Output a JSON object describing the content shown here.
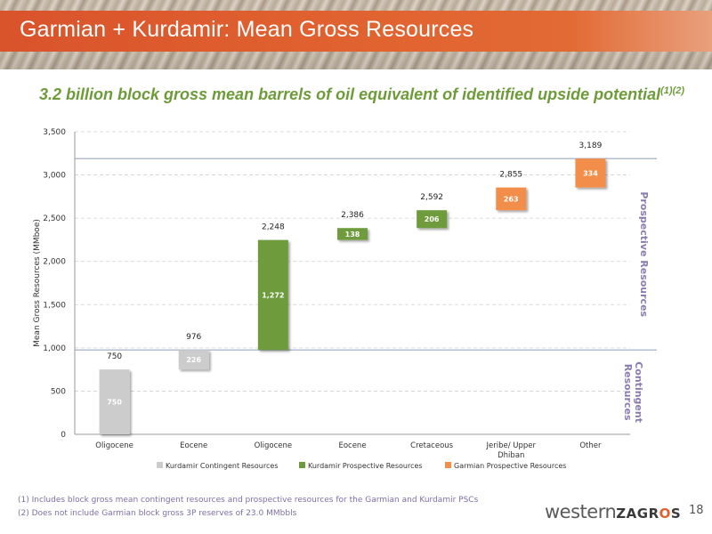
{
  "slide": {
    "title": "Garmian + Kurdamir: Mean Gross Resources",
    "subtitle": "3.2 billion block gross mean barrels of oil equivalent of identified upside potential",
    "subtitle_superscript": "(1)(2)",
    "footnotes": [
      "(1)   Includes block gross mean contingent resources and prospective resources for the Garmian and Kurdamir PSCs",
      "(2)   Does not include Garmian block gross 3P reserves of 23.0 MMbbls"
    ],
    "logo_text_lower": "western",
    "logo_text_upper_a": "ZAGR",
    "logo_text_upper_o": "O",
    "logo_text_upper_b": "S",
    "page_number": "18"
  },
  "chart_data": {
    "type": "bar",
    "subtype": "waterfall",
    "ylabel": "Mean Gross Resources (MMboe)",
    "ylim": [
      0,
      3500
    ],
    "yticks": [
      0,
      500,
      1000,
      1500,
      2000,
      2500,
      3000,
      3500
    ],
    "ytick_labels": [
      "0",
      "500",
      "1,000",
      "1,500",
      "2,000",
      "2,500",
      "3,000",
      "3,500"
    ],
    "grid": true,
    "legend_placement": "bottom",
    "categories": [
      "Oligocene",
      "Eocene",
      "Oligocene",
      "Eocene",
      "Cretaceous",
      "Jeribe/ Upper Dhiban",
      "Other"
    ],
    "bars": [
      {
        "base": 0,
        "value": 750,
        "series": 0,
        "total_label": "750",
        "value_label": "750"
      },
      {
        "base": 750,
        "value": 226,
        "series": 0,
        "total_label": "976",
        "value_label": "226"
      },
      {
        "base": 976,
        "value": 1272,
        "series": 1,
        "total_label": "2,248",
        "value_label": "1,272"
      },
      {
        "base": 2248,
        "value": 138,
        "series": 1,
        "total_label": "2,386",
        "value_label": "138"
      },
      {
        "base": 2386,
        "value": 206,
        "series": 1,
        "total_label": "2,592",
        "value_label": "206"
      },
      {
        "base": 2592,
        "value": 263,
        "series": 2,
        "total_label": "2,855",
        "value_label": "263"
      },
      {
        "base": 2855,
        "value": 334,
        "series": 2,
        "total_label": "3,189",
        "value_label": "334"
      }
    ],
    "series": [
      {
        "name": "Kurdamir Contingent Resources",
        "color": "#cccccc"
      },
      {
        "name": "Kurdamir Prospective Resources",
        "color": "#6e9b3a"
      },
      {
        "name": "Garmian Prospective Resources",
        "color": "#f28e4a"
      }
    ],
    "reference_lines": [
      976,
      3189
    ],
    "region_labels": [
      {
        "text": "Prospective Resources",
        "from": 976,
        "to": 3189
      },
      {
        "text": "Contingent Resources",
        "from": 0,
        "to": 976
      }
    ],
    "region_label_color": "#8b7cb0"
  }
}
